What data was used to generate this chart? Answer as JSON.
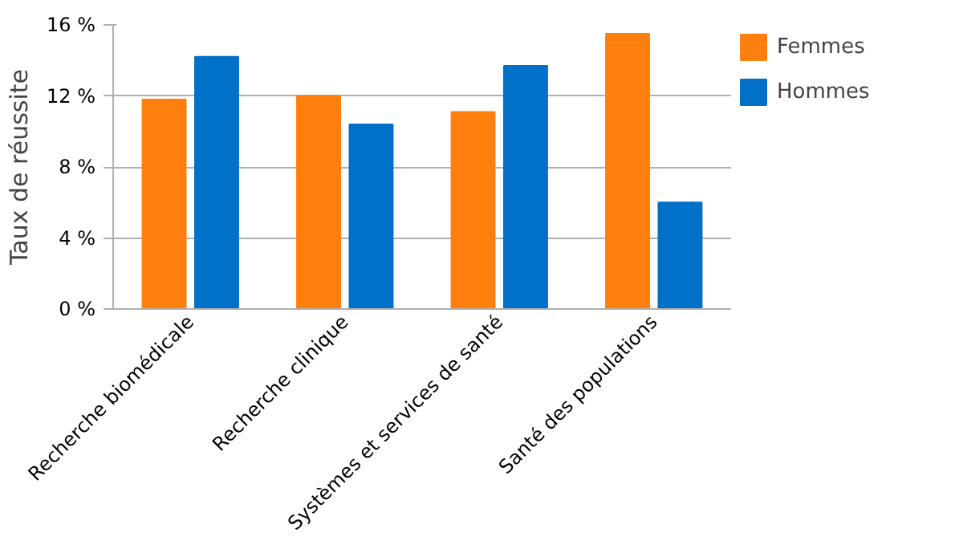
{
  "chart_data": {
    "type": "bar",
    "ylabel": "Taux de réussite",
    "categories": [
      "Recherche biomédicale",
      "Recherche clinique",
      "Systèmes et services de santé",
      "Santé des populations"
    ],
    "series": [
      {
        "name": "Femmes",
        "color": "#ff7f0e",
        "values": [
          11.8,
          12.0,
          11.1,
          15.5
        ]
      },
      {
        "name": "Hommes",
        "color": "#0070c8",
        "values": [
          14.2,
          10.4,
          13.7,
          6.0
        ]
      }
    ],
    "ylim": [
      0,
      16
    ],
    "yticks": [
      {
        "value": 0,
        "label": "0 %"
      },
      {
        "value": 4,
        "label": "4 %"
      },
      {
        "value": 8,
        "label": "8 %"
      },
      {
        "value": 12,
        "label": "12 %"
      },
      {
        "value": 16,
        "label": "16 %"
      }
    ],
    "grid": "y",
    "legend": "right"
  }
}
